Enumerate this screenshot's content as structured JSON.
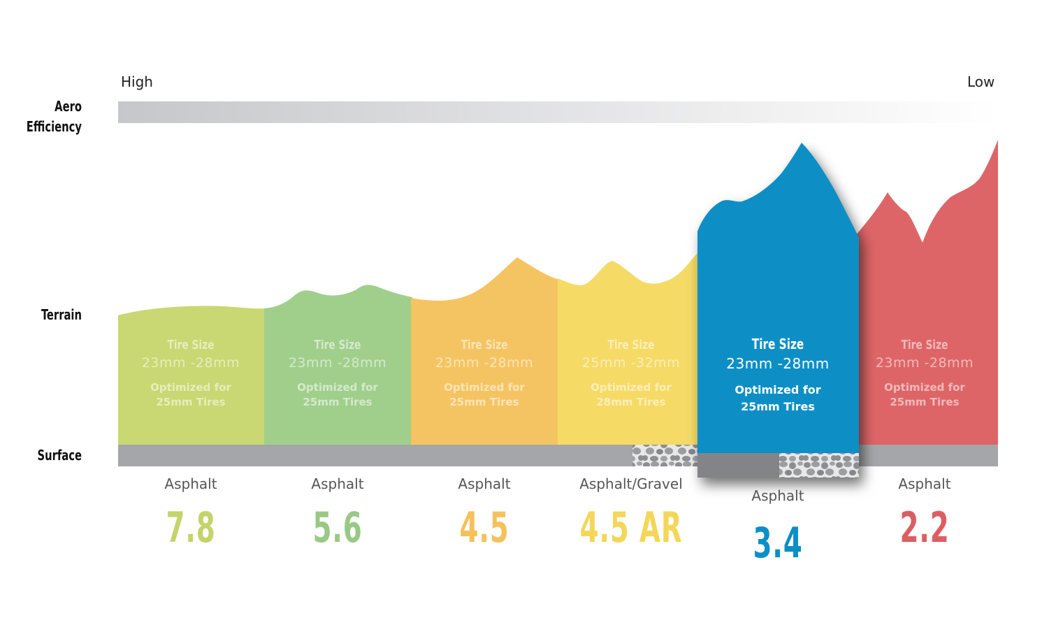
{
  "labels": {
    "aero_line1": "Aero",
    "aero_line2": "Efficiency",
    "terrain": "Terrain",
    "surface": "Surface",
    "aero_high": "High",
    "aero_low": "Low"
  },
  "segments": [
    {
      "tire_title": "Tire Size",
      "tire_size": "23mm -28mm",
      "opt_line1": "Optimized for",
      "opt_line2": "25mm Tires",
      "surface": "Asphalt",
      "model": "7.8",
      "color": "#c9d872",
      "gravel_fraction": 0,
      "active": false
    },
    {
      "tire_title": "Tire Size",
      "tire_size": "23mm -28mm",
      "opt_line1": "Optimized for",
      "opt_line2": "25mm Tires",
      "surface": "Asphalt",
      "model": "5.6",
      "color": "#a0cf8c",
      "gravel_fraction": 0,
      "active": false
    },
    {
      "tire_title": "Tire Size",
      "tire_size": "23mm -28mm",
      "opt_line1": "Optimized for",
      "opt_line2": "25mm Tires",
      "surface": "Asphalt",
      "model": "4.5",
      "color": "#f5c462",
      "gravel_fraction": 0,
      "active": false
    },
    {
      "tire_title": "Tire Size",
      "tire_size": "25mm -32mm",
      "opt_line1": "Optimized for",
      "opt_line2": "28mm Tires",
      "surface": "Asphalt/Gravel",
      "model": "4.5 AR",
      "color": "#f5da66",
      "gravel_fraction": 0.45,
      "active": false
    },
    {
      "tire_title": "Tire Size",
      "tire_size": "23mm -28mm",
      "opt_line1": "Optimized for",
      "opt_line2": "25mm Tires",
      "surface": "Asphalt",
      "model": "3.4",
      "color": "#0a8fc6",
      "gravel_fraction": 0.5,
      "active": true
    },
    {
      "tire_title": "Tire Size",
      "tire_size": "23mm -28mm",
      "opt_line1": "Optimized for",
      "opt_line2": "25mm Tires",
      "surface": "Asphalt",
      "model": "2.2",
      "color": "#dd6567",
      "gravel_fraction": 0,
      "active": false
    }
  ],
  "colors": {
    "surface_bar": "#a5a6a9",
    "surface_bar_active": "#838488",
    "aero_gradient_start": "#c6c7ca",
    "aero_gradient_end": "#ffffff",
    "model_colors": [
      "#c5d36a",
      "#99c985",
      "#f4c15b",
      "#f4d75a",
      "#0a8fc6",
      "#db5f62"
    ]
  }
}
